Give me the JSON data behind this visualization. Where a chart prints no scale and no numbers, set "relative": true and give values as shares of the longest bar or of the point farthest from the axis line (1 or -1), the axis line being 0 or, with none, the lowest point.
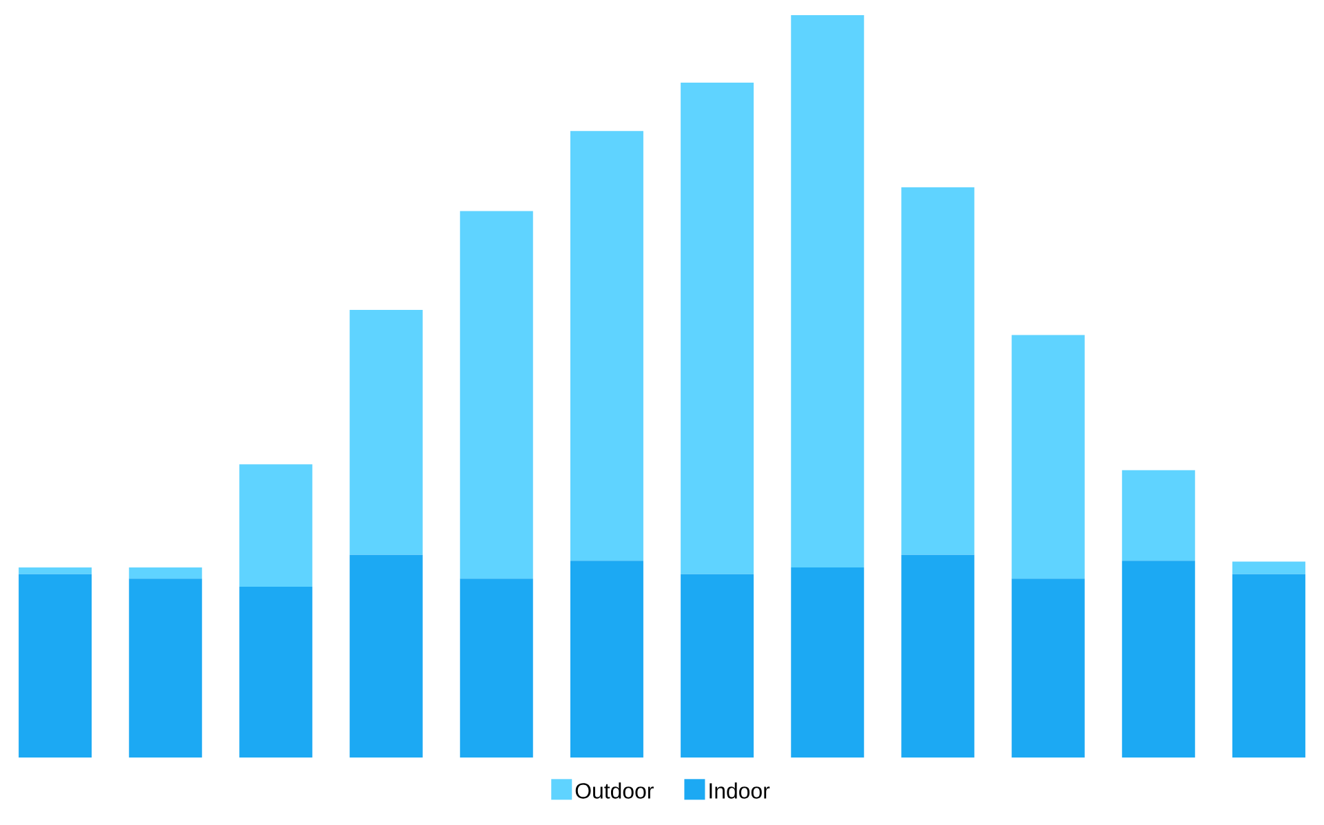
{
  "chart_data": {
    "type": "bar",
    "stacked": true,
    "relative": true,
    "legend": "bottom",
    "categories": [
      null,
      null,
      null,
      null,
      null,
      null,
      null,
      null,
      null,
      null,
      null,
      null
    ],
    "series": [
      {
        "name": "Indoor",
        "color": "#1ca9f3",
        "values": [
          0.247,
          0.241,
          0.23,
          0.273,
          0.241,
          0.265,
          0.247,
          0.256,
          0.273,
          0.241,
          0.265,
          0.247
        ]
      },
      {
        "name": "Outdoor",
        "color": "#5fd3ff",
        "values": [
          0.009,
          0.015,
          0.165,
          0.33,
          0.495,
          0.579,
          0.662,
          0.744,
          0.495,
          0.328,
          0.122,
          0.017
        ]
      }
    ]
  }
}
